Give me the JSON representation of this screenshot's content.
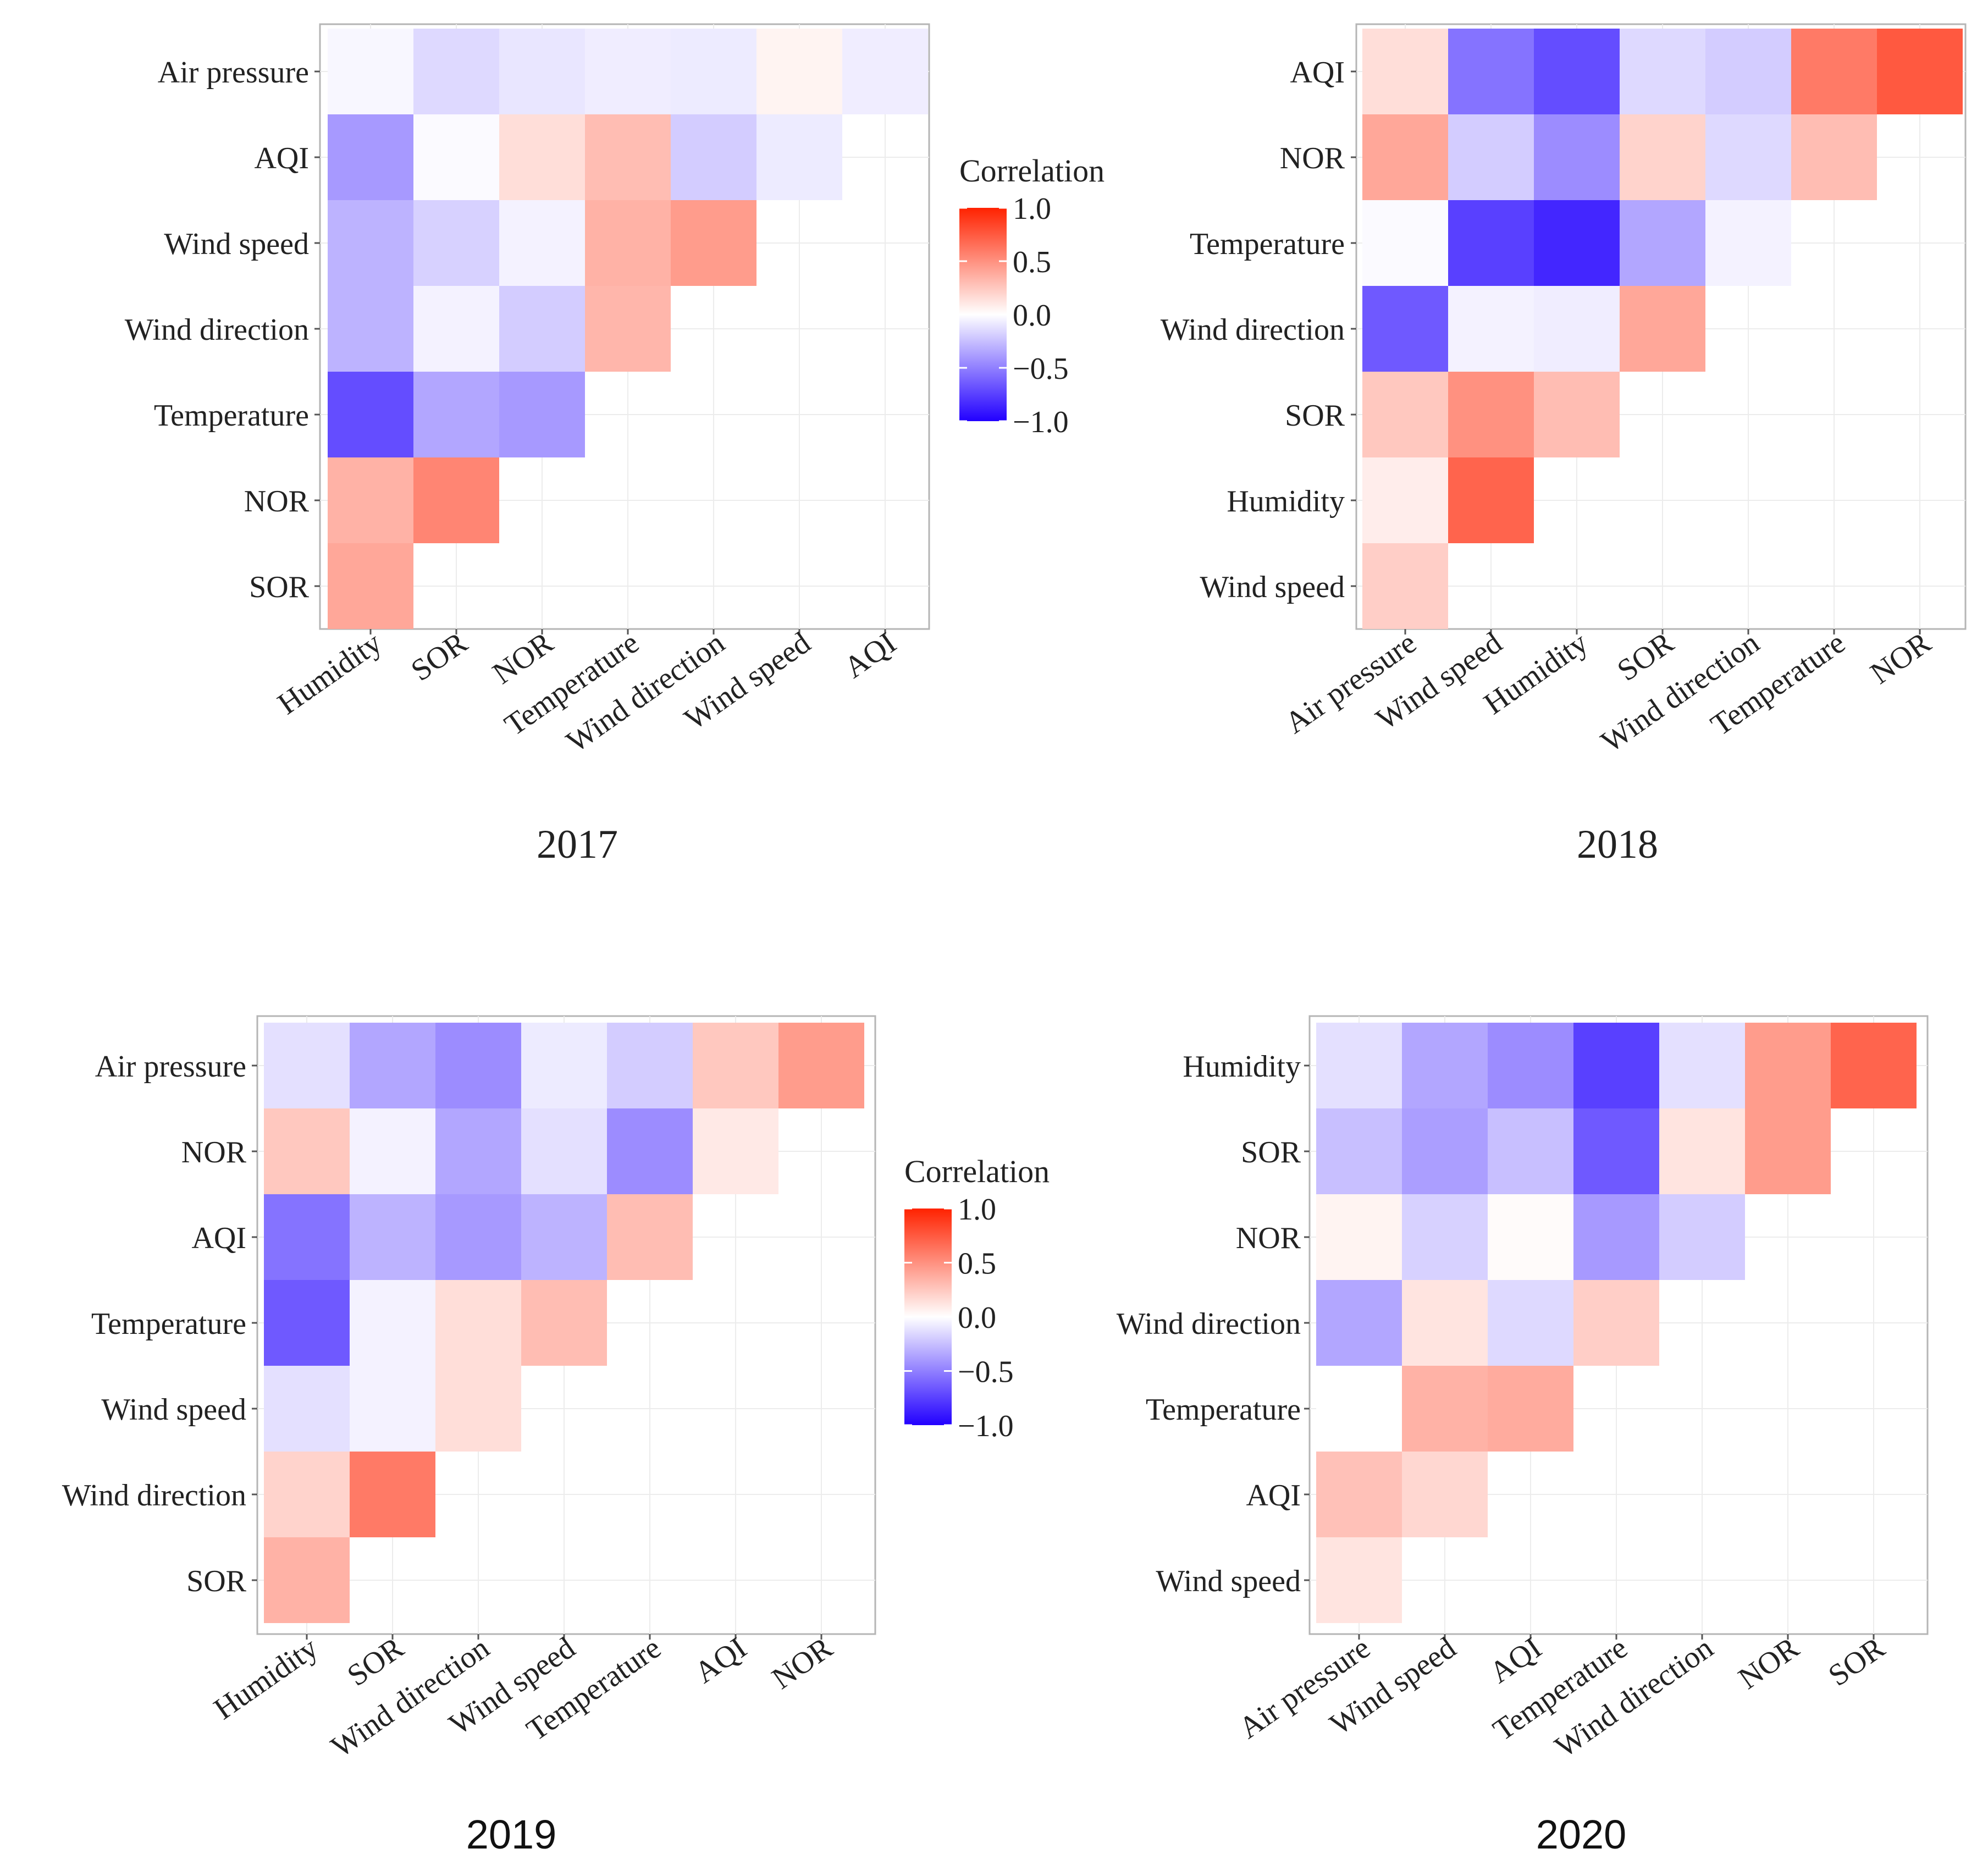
{
  "legend": {
    "title": "Correlation",
    "ticks": [
      "1.0",
      "0.5",
      "0.0",
      "−0.5",
      "−1.0"
    ],
    "colors": {
      "high": "#ff2200",
      "mid": "#ffffff",
      "low": "#2200ff"
    }
  },
  "chart_data": [
    {
      "type": "heatmap",
      "title": "2017",
      "rows": [
        "Air pressure",
        "AQI",
        "Wind speed",
        "Wind direction",
        "Temperature",
        "NOR",
        "SOR"
      ],
      "columns": [
        "Humidity",
        "SOR",
        "NOR",
        "Temperature",
        "Wind direction",
        "Wind speed",
        "AQI"
      ],
      "values": [
        [
          -0.03,
          -0.15,
          -0.1,
          -0.07,
          -0.08,
          0.05,
          -0.07
        ],
        [
          -0.4,
          -0.02,
          0.15,
          0.3,
          -0.2,
          -0.08,
          null
        ],
        [
          -0.3,
          -0.18,
          -0.05,
          0.35,
          0.45,
          null,
          null
        ],
        [
          -0.3,
          -0.05,
          -0.2,
          0.33,
          null,
          null,
          null
        ],
        [
          -0.7,
          -0.35,
          -0.4,
          null,
          null,
          null,
          null
        ],
        [
          0.35,
          0.55,
          null,
          null,
          null,
          null,
          null
        ],
        [
          0.4,
          null,
          null,
          null,
          null,
          null,
          null
        ]
      ],
      "zlim": [
        -1,
        1
      ]
    },
    {
      "type": "heatmap",
      "title": "2018",
      "rows": [
        "AQI",
        "NOR",
        "Temperature",
        "Wind direction",
        "SOR",
        "Humidity",
        "Wind speed"
      ],
      "columns": [
        "Air pressure",
        "Wind speed",
        "Humidity",
        "SOR",
        "Wind direction",
        "Temperature",
        "NOR"
      ],
      "values": [
        [
          0.15,
          -0.55,
          -0.7,
          -0.15,
          -0.2,
          0.6,
          0.75
        ],
        [
          0.4,
          -0.2,
          -0.45,
          0.2,
          -0.15,
          0.3,
          null
        ],
        [
          -0.02,
          -0.75,
          -0.85,
          -0.35,
          -0.05,
          null,
          null
        ],
        [
          -0.65,
          -0.05,
          -0.07,
          0.4,
          null,
          null,
          null
        ],
        [
          0.25,
          0.5,
          0.3,
          null,
          null,
          null,
          null
        ],
        [
          0.08,
          0.7,
          null,
          null,
          null,
          null,
          null
        ],
        [
          0.22,
          null,
          null,
          null,
          null,
          null,
          null
        ]
      ],
      "zlim": [
        -1,
        1
      ]
    },
    {
      "type": "heatmap",
      "title": "2019",
      "rows": [
        "Air pressure",
        "NOR",
        "AQI",
        "Temperature",
        "Wind speed",
        "Wind direction",
        "SOR"
      ],
      "columns": [
        "Humidity",
        "SOR",
        "Wind direction",
        "Wind speed",
        "Temperature",
        "AQI",
        "NOR"
      ],
      "values": [
        [
          -0.12,
          -0.35,
          -0.45,
          -0.08,
          -0.2,
          0.25,
          0.45
        ],
        [
          0.25,
          -0.05,
          -0.35,
          -0.12,
          -0.45,
          0.1,
          null
        ],
        [
          -0.55,
          -0.3,
          -0.4,
          -0.3,
          0.3,
          null,
          null
        ],
        [
          -0.65,
          -0.05,
          0.15,
          0.3,
          null,
          null,
          null
        ],
        [
          -0.12,
          -0.05,
          0.15,
          null,
          null,
          null,
          null
        ],
        [
          0.2,
          0.6,
          null,
          null,
          null,
          null,
          null
        ],
        [
          0.35,
          null,
          null,
          null,
          null,
          null,
          null
        ]
      ],
      "zlim": [
        -1,
        1
      ]
    },
    {
      "type": "heatmap",
      "title": "2020",
      "rows": [
        "Humidity",
        "SOR",
        "NOR",
        "Wind direction",
        "Temperature",
        "AQI",
        "Wind speed"
      ],
      "columns": [
        "Air pressure",
        "Wind speed",
        "AQI",
        "Temperature",
        "Wind direction",
        "NOR",
        "SOR"
      ],
      "values": [
        [
          -0.12,
          -0.35,
          -0.45,
          -0.75,
          -0.12,
          0.45,
          0.7
        ],
        [
          -0.25,
          -0.38,
          -0.25,
          -0.65,
          0.12,
          0.45,
          null
        ],
        [
          0.05,
          -0.18,
          0.02,
          -0.4,
          -0.2,
          null,
          null
        ],
        [
          -0.35,
          0.12,
          -0.15,
          0.22,
          null,
          null,
          null
        ],
        [
          0.0,
          0.35,
          0.38,
          null,
          null,
          null,
          null
        ],
        [
          0.28,
          0.18,
          null,
          null,
          null,
          null,
          null
        ],
        [
          0.12,
          null,
          null,
          null,
          null,
          null,
          null
        ]
      ],
      "zlim": [
        -1,
        1
      ]
    }
  ]
}
